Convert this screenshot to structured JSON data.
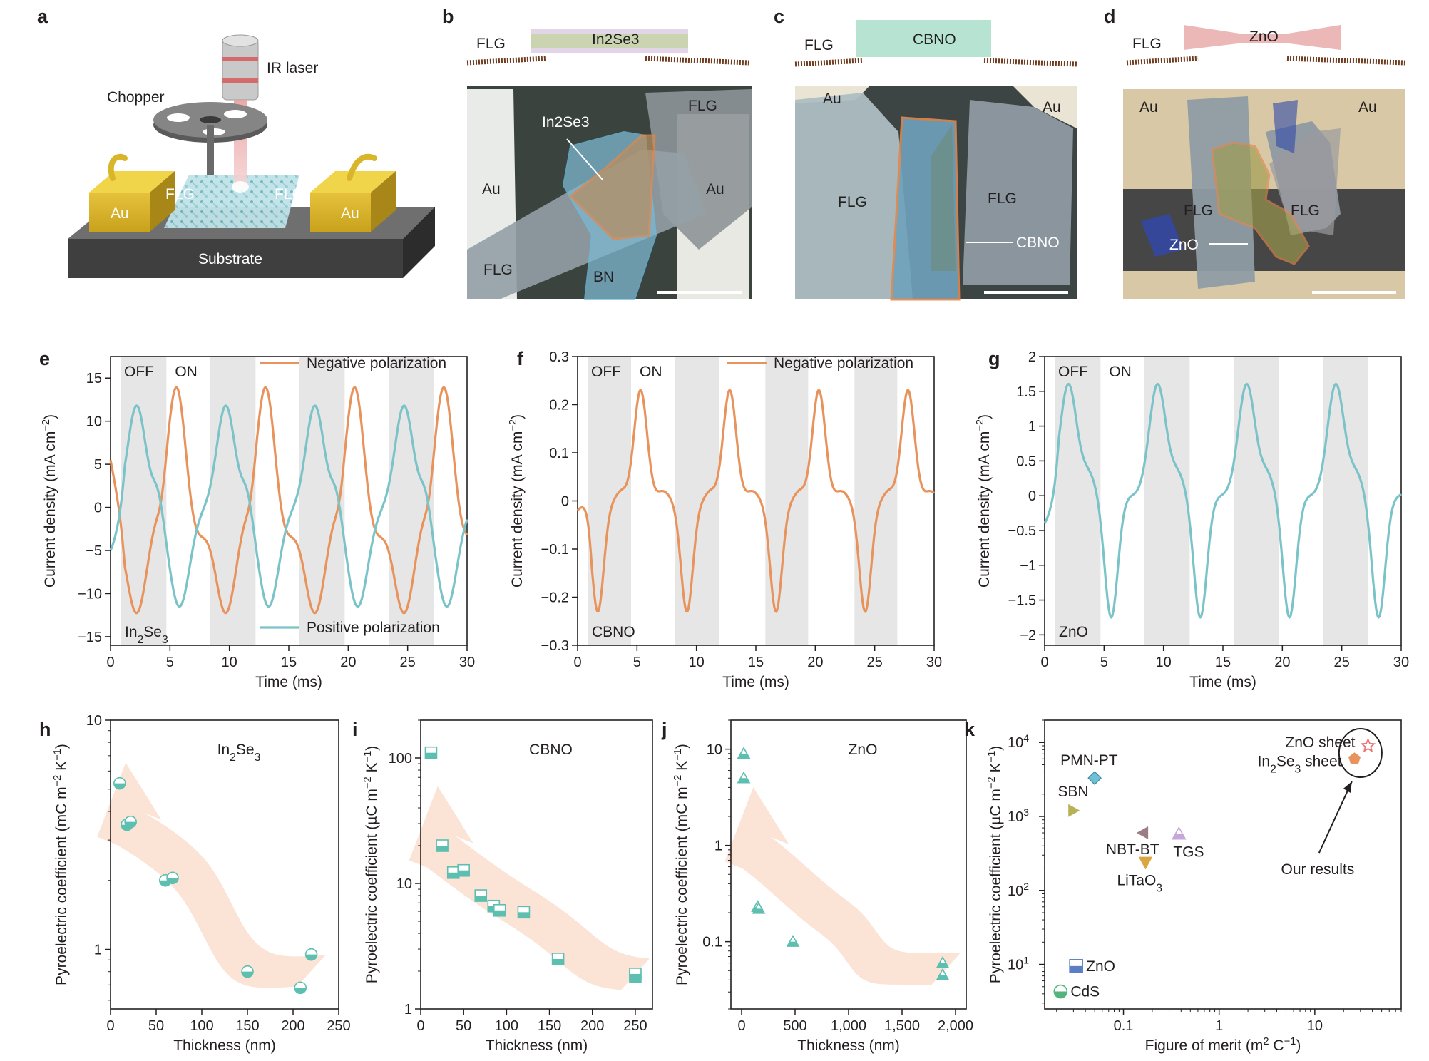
{
  "panels": {
    "a": "a",
    "b": "b",
    "c": "c",
    "d": "d",
    "e": "e",
    "f": "f",
    "g": "g",
    "h": "h",
    "i": "i",
    "j": "j",
    "k": "k"
  },
  "schematic": {
    "chopper": "Chopper",
    "laser": "IR laser",
    "au_left": "Au",
    "au_right": "Au",
    "flg_left": "FLG",
    "flg_right": "FLG",
    "substrate": "Substrate"
  },
  "micro_b": {
    "top_flg": "FLG",
    "top_mat": "In2Se3",
    "au1": "Au",
    "au2": "Au",
    "flg1": "FLG",
    "flg2": "FLG",
    "arrow_label": "In2Se3",
    "bn": "BN"
  },
  "micro_c": {
    "top_flg": "FLG",
    "top_mat": "CBNO",
    "au1": "Au",
    "au2": "Au",
    "flg1": "FLG",
    "flg2": "FLG",
    "arrow_label": "CBNO"
  },
  "micro_d": {
    "top_flg": "FLG",
    "top_mat": "ZnO",
    "au1": "Au",
    "au2": "Au",
    "flg1": "FLG",
    "flg2": "FLG",
    "arrow_label": "ZnO"
  },
  "colors": {
    "orange": "#e8935c",
    "teal": "#7ac3c8",
    "arrow": "#fbe2d3",
    "shade": "#e6e6e6"
  },
  "chart_data": [
    {
      "id": "e",
      "type": "line",
      "sample": "In2Se3",
      "xlabel": "Time (ms)",
      "ylabel": "Current density (mA cm-2)",
      "xlim": [
        0,
        30
      ],
      "ylim": [
        -16,
        17.5
      ],
      "xticks": [
        0,
        5,
        10,
        15,
        20,
        25,
        30
      ],
      "yticks": [
        -15,
        -10,
        -5,
        0,
        5,
        10,
        15
      ],
      "off_label": "OFF",
      "on_label": "ON",
      "off_windows": [
        [
          0.9,
          4.7
        ],
        [
          8.4,
          12.2
        ],
        [
          15.9,
          19.7
        ],
        [
          23.4,
          27.2
        ]
      ],
      "series": [
        {
          "name": "Negative polarization",
          "color": "#e8935c",
          "shape": "neg",
          "period": 7.5,
          "phase": 5.6,
          "peak": 14.8,
          "trough": -12.2,
          "shoulder": -1.5,
          "start": 5.5
        },
        {
          "name": "Positive polarization",
          "color": "#7ac3c8",
          "shape": "pos",
          "period": 7.5,
          "phase": 2.2,
          "peak": 11.8,
          "trough": -11.5,
          "shoulder": 2.5,
          "start": -5.0
        }
      ]
    },
    {
      "id": "f",
      "type": "line",
      "sample": "CBNO",
      "xlabel": "Time (ms)",
      "ylabel": "Current density (mA cm-2)",
      "xlim": [
        0,
        30
      ],
      "ylim": [
        -0.3,
        0.3
      ],
      "xticks": [
        0,
        5,
        10,
        15,
        20,
        25,
        30
      ],
      "yticks": [
        -0.3,
        -0.2,
        -0.1,
        0,
        0.1,
        0.2,
        0.3
      ],
      "off_label": "OFF",
      "on_label": "ON",
      "off_windows": [
        [
          0.9,
          4.5
        ],
        [
          8.2,
          11.9
        ],
        [
          15.8,
          19.4
        ],
        [
          23.3,
          26.9
        ]
      ],
      "series": [
        {
          "name": "Negative polarization",
          "color": "#e8935c",
          "shape": "cbno",
          "period": 7.5,
          "phase": 5.3,
          "peak": 0.23,
          "trough": -0.23,
          "shoulder": 0.02,
          "start": -0.02
        }
      ]
    },
    {
      "id": "g",
      "type": "line",
      "sample": "ZnO",
      "xlabel": "Time (ms)",
      "ylabel": "Current density (mA cm-2)",
      "xlim": [
        0,
        30
      ],
      "ylim": [
        -2.15,
        2.0
      ],
      "xticks": [
        0,
        5,
        10,
        15,
        20,
        25,
        30
      ],
      "yticks": [
        -2.0,
        -1.5,
        -1.0,
        -0.5,
        0,
        0.5,
        1.0,
        1.5,
        2.0
      ],
      "off_label": "OFF",
      "on_label": "ON",
      "off_windows": [
        [
          0.9,
          4.7
        ],
        [
          8.4,
          12.2
        ],
        [
          15.9,
          19.7
        ],
        [
          23.4,
          27.2
        ]
      ],
      "series": [
        {
          "name": "",
          "color": "#7ac3c8",
          "shape": "zno",
          "period": 7.5,
          "phase": 2.0,
          "peak": 1.6,
          "trough": -1.75,
          "shoulder": 0.3,
          "start": -0.4
        }
      ]
    },
    {
      "id": "h",
      "type": "scatter",
      "sample": "In2Se3",
      "xlabel": "Thickness (nm)",
      "ylabel": "Pyroelectric coefficient (mC m-2 K-1)",
      "xscale": "linear",
      "yscale": "log",
      "xlim": [
        0,
        250
      ],
      "ylim": [
        0.55,
        10
      ],
      "xticks": [
        0,
        50,
        100,
        150,
        200,
        250
      ],
      "yticks": [
        1,
        10
      ],
      "marker": "circle",
      "points": [
        [
          10,
          5.3
        ],
        [
          18,
          3.5
        ],
        [
          22,
          3.6
        ],
        [
          60,
          2.0
        ],
        [
          68,
          2.05
        ],
        [
          150,
          0.8
        ],
        [
          208,
          0.68
        ],
        [
          220,
          0.95
        ]
      ]
    },
    {
      "id": "i",
      "type": "scatter",
      "sample": "CBNO",
      "xlabel": "Thickness (nm)",
      "ylabel": "Pyroelectric coefficient (µC m-2 K-1)",
      "xscale": "linear",
      "yscale": "log",
      "xlim": [
        0,
        270
      ],
      "ylim": [
        1,
        200
      ],
      "xticks": [
        0,
        50,
        100,
        150,
        200,
        250
      ],
      "yticks": [
        1,
        10,
        100
      ],
      "marker": "square",
      "points": [
        [
          12,
          110
        ],
        [
          25,
          20
        ],
        [
          38,
          12.2
        ],
        [
          50,
          12.7
        ],
        [
          70,
          8.0
        ],
        [
          85,
          6.6
        ],
        [
          92,
          6.1
        ],
        [
          120,
          5.9
        ],
        [
          160,
          2.5
        ],
        [
          250,
          1.8
        ],
        [
          250,
          1.9
        ]
      ]
    },
    {
      "id": "j",
      "type": "scatter",
      "sample": "ZnO",
      "xlabel": "Thickness (nm)",
      "ylabel": "Pyroelectric coefficient (mC m-2 K-1)",
      "xscale": "linear",
      "yscale": "log",
      "xlim": [
        -100,
        2100
      ],
      "ylim": [
        0.02,
        20
      ],
      "xticks": [
        0,
        500,
        1000,
        1500,
        2000
      ],
      "xtick_labels": [
        "0",
        "500",
        "1,000",
        "1,500",
        "2,000"
      ],
      "yticks": [
        0.1,
        1,
        10
      ],
      "ytick_labels": [
        "0.1",
        "1",
        "10"
      ],
      "marker": "triangle",
      "points": [
        [
          20,
          9.0
        ],
        [
          20,
          5.0
        ],
        [
          150,
          0.23
        ],
        [
          160,
          0.22
        ],
        [
          480,
          0.1
        ],
        [
          1880,
          0.06
        ],
        [
          1880,
          0.045
        ]
      ]
    },
    {
      "id": "k",
      "type": "scatter",
      "xlabel": "Figure of merit (m2 C-1)",
      "ylabel": "Pyroelectric coefficient (µC m-2 K-1)",
      "xscale": "log",
      "yscale": "log",
      "xlim": [
        0.015,
        80
      ],
      "ylim": [
        2.5,
        20000
      ],
      "xticks": [
        0.1,
        1,
        10
      ],
      "xtick_labels": [
        "0.1",
        "1",
        "10"
      ],
      "yticks": [
        10,
        100,
        1000,
        10000
      ],
      "ytick_labels": [
        "10",
        "10",
        "10",
        "10"
      ],
      "ytick_exps": [
        "1",
        "2",
        "3",
        "4"
      ],
      "annotation": "Our results",
      "points": [
        {
          "label": "PMN-PT",
          "x": 0.05,
          "y": 3300,
          "marker": "diamond",
          "color": "#6fc0d6"
        },
        {
          "label": "SBN",
          "x": 0.03,
          "y": 1200,
          "marker": "tri-right",
          "color": "#b8b158"
        },
        {
          "label": "NBT-BT",
          "x": 0.16,
          "y": 600,
          "marker": "tri-left",
          "color": "#9c7d84"
        },
        {
          "label": "TGS",
          "x": 0.38,
          "y": 580,
          "marker": "tri-up",
          "color": "#c7a6da"
        },
        {
          "label": "LiTaO3",
          "x": 0.17,
          "y": 240,
          "marker": "tri-down",
          "color": "#d9a641"
        },
        {
          "label": "ZnO",
          "x": 0.032,
          "y": 9.5,
          "marker": "square",
          "color": "#5b7fc4"
        },
        {
          "label": "CdS",
          "x": 0.022,
          "y": 4.3,
          "marker": "circle",
          "color": "#55b47e"
        },
        {
          "label": "ZnO sheet",
          "x": 36,
          "y": 9000,
          "marker": "star",
          "color": "#e97878"
        },
        {
          "label": "In2Se3 sheet",
          "x": 26,
          "y": 6000,
          "marker": "pentagon",
          "color": "#e8935c"
        }
      ]
    }
  ]
}
